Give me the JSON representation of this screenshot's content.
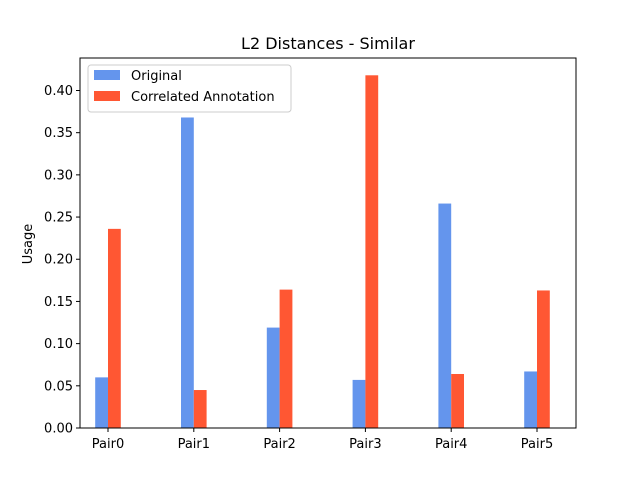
{
  "chart_data": {
    "type": "bar",
    "title": "L2 Distances - Similar",
    "xlabel": "",
    "ylabel": "Usage",
    "categories": [
      "Pair0",
      "Pair1",
      "Pair2",
      "Pair3",
      "Pair4",
      "Pair5"
    ],
    "series": [
      {
        "name": "Original",
        "color": "#6495ed",
        "values": [
          0.06,
          0.368,
          0.119,
          0.057,
          0.266,
          0.067
        ]
      },
      {
        "name": "Correlated Annotation",
        "color": "#ff5733",
        "values": [
          0.236,
          0.045,
          0.164,
          0.418,
          0.064,
          0.163
        ]
      }
    ],
    "ylim": [
      0,
      0.4385
    ],
    "yticks": [
      "0.00",
      "0.05",
      "0.10",
      "0.15",
      "0.20",
      "0.25",
      "0.30",
      "0.35",
      "0.40"
    ],
    "grid": false,
    "legend_position": "top-left"
  }
}
